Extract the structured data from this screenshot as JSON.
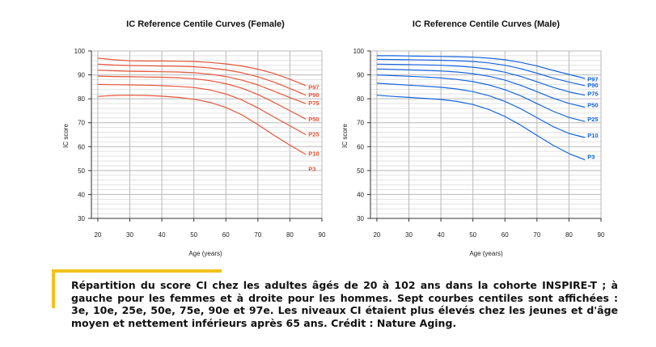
{
  "chart_data": [
    {
      "type": "line",
      "title": "IC Reference Centile Curves (Female)",
      "xlabel": "Age (years)",
      "ylabel": "IC score",
      "xlim": [
        18,
        90
      ],
      "ylim": [
        30,
        100
      ],
      "xticks": [
        20,
        30,
        40,
        50,
        60,
        70,
        80,
        90
      ],
      "yticks": [
        30,
        40,
        50,
        60,
        70,
        80,
        90,
        100
      ],
      "grid": true,
      "color": "#e8553a",
      "x": [
        20,
        25,
        30,
        35,
        40,
        45,
        50,
        55,
        60,
        65,
        70,
        75,
        80,
        85
      ],
      "series": [
        {
          "name": "P97",
          "values": [
            97,
            96.3,
            95.9,
            95.8,
            95.8,
            95.7,
            95.6,
            95.2,
            94.6,
            93.7,
            92.4,
            90.6,
            88.2,
            85.5
          ]
        },
        {
          "name": "P90",
          "values": [
            94.5,
            94.1,
            93.9,
            93.8,
            93.7,
            93.6,
            93.4,
            92.9,
            92.1,
            90.9,
            89.2,
            87.0,
            84.3,
            81.5
          ]
        },
        {
          "name": "P75",
          "values": [
            92,
            91.7,
            91.5,
            91.4,
            91.3,
            91.2,
            90.9,
            90.3,
            89.3,
            87.8,
            85.8,
            83.2,
            80.5,
            78.0
          ]
        },
        {
          "name": "P50",
          "values": [
            89.5,
            89.3,
            89.2,
            89.1,
            89.0,
            88.8,
            88.4,
            87.6,
            86.3,
            84.4,
            81.8,
            78.5,
            75.0,
            71.5
          ]
        },
        {
          "name": "P25",
          "values": [
            86,
            85.9,
            85.8,
            85.7,
            85.5,
            85.2,
            84.7,
            83.7,
            82.0,
            79.5,
            76.2,
            72.4,
            68.7,
            65.0
          ]
        },
        {
          "name": "P10",
          "values": [
            81,
            81.4,
            81.5,
            81.4,
            81.1,
            80.6,
            79.8,
            78.5,
            76.4,
            73.3,
            69.2,
            64.8,
            60.6,
            56.7
          ]
        },
        {
          "name": "P3",
          "values": [
            null,
            null,
            null,
            null,
            null,
            null,
            null,
            null,
            null,
            null,
            null,
            null,
            null,
            50.5
          ]
        }
      ]
    },
    {
      "type": "line",
      "title": "IC Reference Centile Curves (Male)",
      "xlabel": "Age (years)",
      "ylabel": "IC score",
      "xlim": [
        18,
        90
      ],
      "ylim": [
        30,
        100
      ],
      "xticks": [
        20,
        30,
        40,
        50,
        60,
        70,
        80,
        90
      ],
      "yticks": [
        30,
        40,
        50,
        60,
        70,
        80,
        90,
        100
      ],
      "grid": true,
      "color": "#1565e0",
      "x": [
        20,
        25,
        30,
        35,
        40,
        45,
        50,
        55,
        60,
        65,
        70,
        75,
        80,
        85
      ],
      "series": [
        {
          "name": "P97",
          "values": [
            98,
            98,
            97.9,
            97.8,
            97.7,
            97.6,
            97.4,
            97.0,
            96.3,
            95.2,
            93.7,
            91.9,
            90.2,
            88.5
          ]
        },
        {
          "name": "P90",
          "values": [
            96.5,
            96.4,
            96.3,
            96.2,
            96.1,
            95.9,
            95.6,
            95.0,
            94.0,
            92.6,
            90.7,
            88.7,
            87.0,
            85.5
          ]
        },
        {
          "name": "P75",
          "values": [
            94.5,
            94.4,
            94.3,
            94.2,
            94.0,
            93.7,
            93.2,
            92.4,
            91.1,
            89.3,
            87.1,
            84.8,
            82.9,
            81.5
          ]
        },
        {
          "name": "P50",
          "values": [
            92.5,
            92.3,
            92.1,
            91.9,
            91.6,
            91.2,
            90.5,
            89.4,
            87.8,
            85.6,
            83.0,
            80.3,
            78.1,
            76.5
          ]
        },
        {
          "name": "P25",
          "values": [
            90,
            89.7,
            89.4,
            89.1,
            88.7,
            88.1,
            87.2,
            85.8,
            83.8,
            81.2,
            78.0,
            74.8,
            72.2,
            70.5
          ]
        },
        {
          "name": "P10",
          "values": [
            86.5,
            86.1,
            85.7,
            85.3,
            84.8,
            84.1,
            83.0,
            81.3,
            78.9,
            75.8,
            72.1,
            68.4,
            65.5,
            63.8
          ]
        },
        {
          "name": "P3",
          "values": [
            81.5,
            81.0,
            80.6,
            80.2,
            79.7,
            78.9,
            77.6,
            75.5,
            72.6,
            68.9,
            64.7,
            60.6,
            57.1,
            54.5
          ]
        }
      ]
    }
  ],
  "caption": {
    "text": "Répartition du score CI chez les adultes âgés de 20 à 102 ans dans la cohorte INSPIRE-T ; à gauche pour les femmes et à droite pour les hommes. Sept courbes centiles sont affichées : 3e, 10e, 25e, 50e, 75e, 90e et 97e. Les niveaux CI étaient plus élevés chez les jeunes et d'âge moyen et nettement inférieurs après 65 ans. Crédit : Nature Aging.",
    "accent_color": "#f2c21b"
  }
}
